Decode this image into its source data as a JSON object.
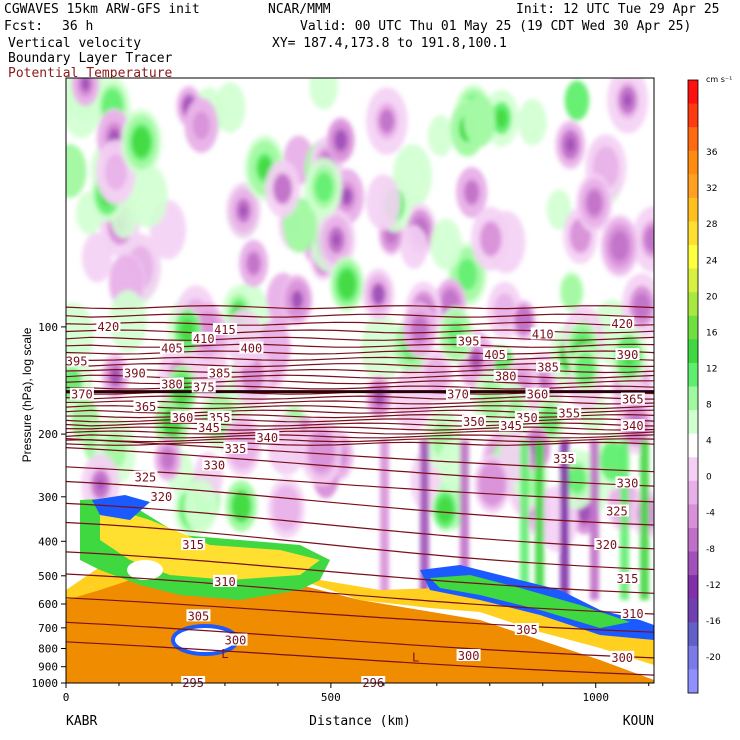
{
  "header": {
    "model": "CGWAVES 15km ARW-GFS init",
    "forecast_label": "Fcst:",
    "forecast_hours": "36 h",
    "field1": "Vertical velocity",
    "field2": "Boundary Layer Tracer",
    "field3": "Potential Temperature",
    "center": "NCAR/MMM",
    "xy": "XY= 187.4,173.8 to 191.8,100.1",
    "init": "Init: 12 UTC Tue 29 Apr 25",
    "valid": "Valid: 00 UTC Thu 01 May 25 (19 CDT Wed 30 Apr 25)"
  },
  "colors": {
    "theta": "#7a0f1c",
    "tropopause": "#2a0008",
    "boundary_layer": "#f08c00"
  },
  "chart_data": {
    "type": "cross-section",
    "ylabel": "Pressure (hPa), log scale",
    "xlabel": "Distance (km)",
    "x_ticks": [
      0,
      500,
      1000
    ],
    "x_range": [
      0,
      1110
    ],
    "y_ticks": [
      100,
      200,
      300,
      400,
      500,
      600,
      700,
      800,
      900,
      1000
    ],
    "y_range": [
      1000,
      20
    ],
    "y_scale": "log",
    "left_station": "KABR",
    "right_station": "KOUN",
    "colorbar": {
      "unit": "cm s⁻¹",
      "ticks": [
        36,
        32,
        28,
        24,
        20,
        16,
        12,
        8,
        4,
        0,
        -4,
        -8,
        -12,
        -16,
        -20
      ],
      "colors": [
        "#ff1010",
        "#ff3a10",
        "#ff6a10",
        "#ff8c10",
        "#ffa020",
        "#ffc020",
        "#ffe030",
        "#ffff40",
        "#d8f040",
        "#a8e840",
        "#70e040",
        "#40d840",
        "#60ee70",
        "#a0f8a0",
        "#d0ffd0",
        "#ffffff",
        "#f4d0f4",
        "#e8b0e8",
        "#d890d8",
        "#c070c8",
        "#a050b8",
        "#8030a8",
        "#7040b0",
        "#6060c8",
        "#7a7ae8",
        "#9090ff"
      ]
    },
    "isentrope_labels": [
      {
        "x": 80,
        "p": 100,
        "text": "420"
      },
      {
        "x": 300,
        "p": 102,
        "text": "415"
      },
      {
        "x": 350,
        "p": 115,
        "text": "400"
      },
      {
        "x": 260,
        "p": 108,
        "text": "410"
      },
      {
        "x": 200,
        "p": 115,
        "text": "405"
      },
      {
        "x": 20,
        "p": 125,
        "text": "395"
      },
      {
        "x": 130,
        "p": 135,
        "text": "390"
      },
      {
        "x": 290,
        "p": 135,
        "text": "385"
      },
      {
        "x": 260,
        "p": 148,
        "text": "375"
      },
      {
        "x": 200,
        "p": 145,
        "text": "380"
      },
      {
        "x": 30,
        "p": 155,
        "text": "370"
      },
      {
        "x": 150,
        "p": 168,
        "text": "365"
      },
      {
        "x": 220,
        "p": 180,
        "text": "360"
      },
      {
        "x": 290,
        "p": 180,
        "text": "355"
      },
      {
        "x": 270,
        "p": 192,
        "text": "345"
      },
      {
        "x": 380,
        "p": 205,
        "text": "340"
      },
      {
        "x": 320,
        "p": 220,
        "text": "335"
      },
      {
        "x": 280,
        "p": 245,
        "text": "330"
      },
      {
        "x": 150,
        "p": 265,
        "text": "325"
      },
      {
        "x": 180,
        "p": 300,
        "text": "320"
      },
      {
        "x": 240,
        "p": 410,
        "text": "315"
      },
      {
        "x": 300,
        "p": 520,
        "text": "310"
      },
      {
        "x": 250,
        "p": 650,
        "text": "305"
      },
      {
        "x": 320,
        "p": 760,
        "text": "300"
      },
      {
        "x": 240,
        "p": 1000,
        "text": "295"
      },
      {
        "x": 580,
        "p": 1000,
        "text": "296"
      },
      {
        "x": 760,
        "p": 110,
        "text": "395"
      },
      {
        "x": 810,
        "p": 120,
        "text": "405"
      },
      {
        "x": 900,
        "p": 105,
        "text": "410"
      },
      {
        "x": 1050,
        "p": 98,
        "text": "420"
      },
      {
        "x": 1060,
        "p": 120,
        "text": "390"
      },
      {
        "x": 910,
        "p": 130,
        "text": "385"
      },
      {
        "x": 830,
        "p": 138,
        "text": "380"
      },
      {
        "x": 740,
        "p": 155,
        "text": "370"
      },
      {
        "x": 890,
        "p": 155,
        "text": "360"
      },
      {
        "x": 1070,
        "p": 160,
        "text": "365"
      },
      {
        "x": 950,
        "p": 175,
        "text": "355"
      },
      {
        "x": 870,
        "p": 180,
        "text": "350"
      },
      {
        "x": 770,
        "p": 185,
        "text": "350"
      },
      {
        "x": 840,
        "p": 190,
        "text": "345"
      },
      {
        "x": 1070,
        "p": 190,
        "text": "340"
      },
      {
        "x": 940,
        "p": 235,
        "text": "335"
      },
      {
        "x": 1060,
        "p": 275,
        "text": "330"
      },
      {
        "x": 1040,
        "p": 330,
        "text": "325"
      },
      {
        "x": 1020,
        "p": 410,
        "text": "320"
      },
      {
        "x": 1060,
        "p": 510,
        "text": "315"
      },
      {
        "x": 1070,
        "p": 640,
        "text": "310"
      },
      {
        "x": 870,
        "p": 710,
        "text": "305"
      },
      {
        "x": 760,
        "p": 840,
        "text": "300"
      },
      {
        "x": 1050,
        "p": 850,
        "text": "300"
      }
    ],
    "L_labels": [
      {
        "x": 300,
        "p": 850,
        "text": "L"
      },
      {
        "x": 660,
        "p": 870,
        "text": "L"
      }
    ]
  }
}
